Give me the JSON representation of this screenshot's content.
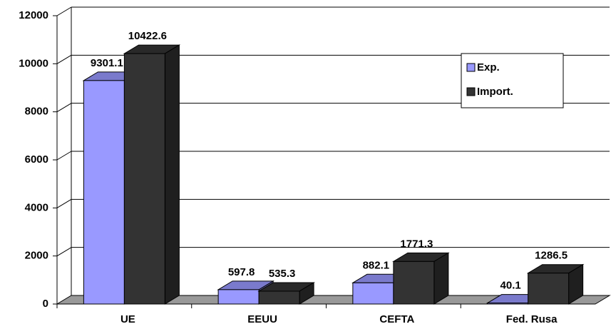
{
  "chart_data": {
    "type": "bar3d",
    "categories": [
      "UE",
      "EEUU",
      "CEFTA",
      "Fed. Rusa"
    ],
    "series": [
      {
        "name": "Exp.",
        "color": "#9999ff",
        "values": [
          9301.1,
          597.8,
          882.1,
          40.1
        ]
      },
      {
        "name": "Import.",
        "color": "#333333",
        "values": [
          10422.6,
          535.3,
          1771.3,
          1286.5
        ]
      }
    ],
    "ylim": [
      0,
      12000
    ],
    "yticks": [
      0,
      2000,
      4000,
      6000,
      8000,
      10000,
      12000
    ],
    "grid": true
  }
}
